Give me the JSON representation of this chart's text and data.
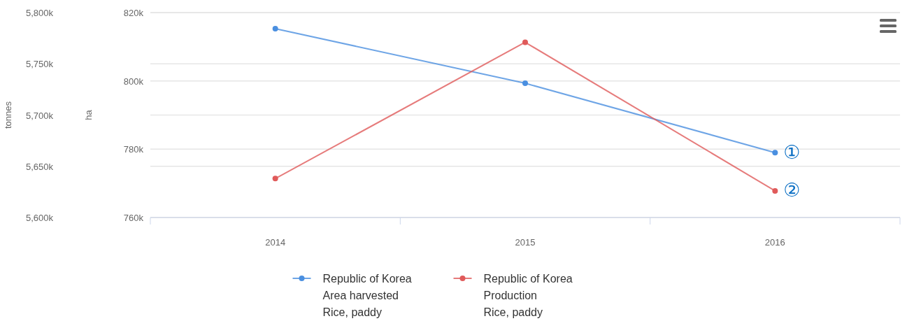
{
  "chart_data": {
    "type": "line",
    "categories": [
      "2014",
      "2015",
      "2016"
    ],
    "ylabel": "ha",
    "y2label": "tonnes",
    "ylim": [
      760000,
      820000
    ],
    "yticks": [
      {
        "value": 760000,
        "label": "760k"
      },
      {
        "value": 780000,
        "label": "780k"
      },
      {
        "value": 800000,
        "label": "800k"
      },
      {
        "value": 820000,
        "label": "820k"
      }
    ],
    "y2lim": [
      5600000,
      5800000
    ],
    "y2ticks": [
      {
        "value": 5600000,
        "label": "5,600k"
      },
      {
        "value": 5650000,
        "label": "5,650k"
      },
      {
        "value": 5700000,
        "label": "5,700k"
      },
      {
        "value": 5750000,
        "label": "5,750k"
      },
      {
        "value": 5800000,
        "label": "5,800k"
      }
    ],
    "series": [
      {
        "name": "Republic of Korea\nArea harvested\nRice, paddy",
        "color": "#4a8fe0",
        "values": [
          815300,
          799300,
          779000
        ]
      },
      {
        "name": "Republic of Korea\nProduction\nRice, paddy",
        "color": "#e05a5a",
        "axis": "y2",
        "values": [
          5638000,
          5771000,
          5626000
        ]
      }
    ],
    "annotations": [
      {
        "text": "①",
        "x": "2016",
        "y": 779000
      },
      {
        "text": "②",
        "x": "2016",
        "y": 768000
      }
    ],
    "grid": true,
    "legend": "bottom",
    "marker": "circle"
  }
}
